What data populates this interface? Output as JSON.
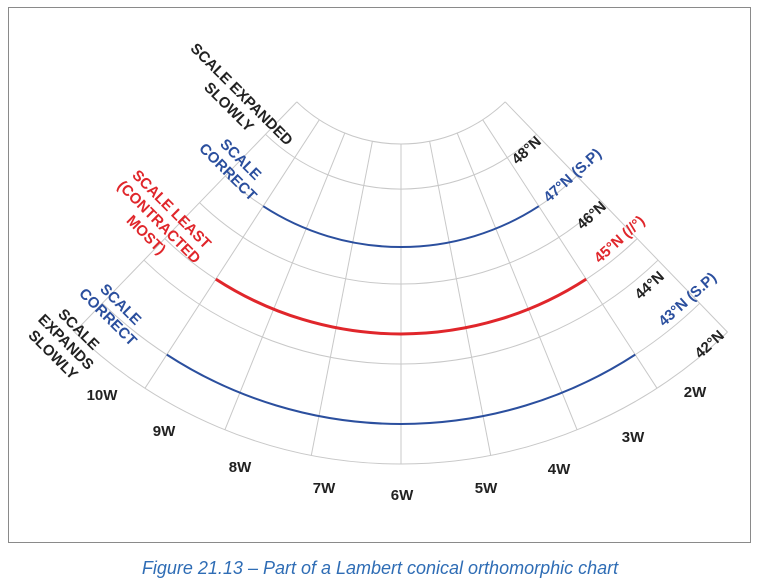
{
  "colors": {
    "black": "#222222",
    "blue": "#2b4f9e",
    "red": "#e0262b",
    "grid": "#c8c8c8"
  },
  "parallels": [
    {
      "label": "48°N",
      "color": "black"
    },
    {
      "label": "47°N (S.P)",
      "color": "blue"
    },
    {
      "label": "46°N",
      "color": "black"
    },
    {
      "label": "45°N (//°)",
      "color": "red"
    },
    {
      "label": "44°N",
      "color": "black"
    },
    {
      "label": "43°N (S.P)",
      "color": "blue"
    },
    {
      "label": "42°N",
      "color": "black"
    }
  ],
  "meridians": [
    "10W",
    "9W",
    "8W",
    "7W",
    "6W",
    "5W",
    "4W",
    "3W",
    "2W"
  ],
  "annotations": {
    "expanded": [
      "SCALE EXPANDED",
      "SLOWLY"
    ],
    "correct_top": [
      "SCALE",
      "CORRECT"
    ],
    "least": [
      "SCALE LEAST",
      "(CONTRACTED",
      "MOST)"
    ],
    "correct_bottom": [
      "SCALE",
      "CORRECT"
    ],
    "expands": [
      "SCALE",
      "EXPANDS",
      "SLOWLY"
    ]
  },
  "caption": "Figure 21.13 – Part of a Lambert conical orthomorphic chart"
}
